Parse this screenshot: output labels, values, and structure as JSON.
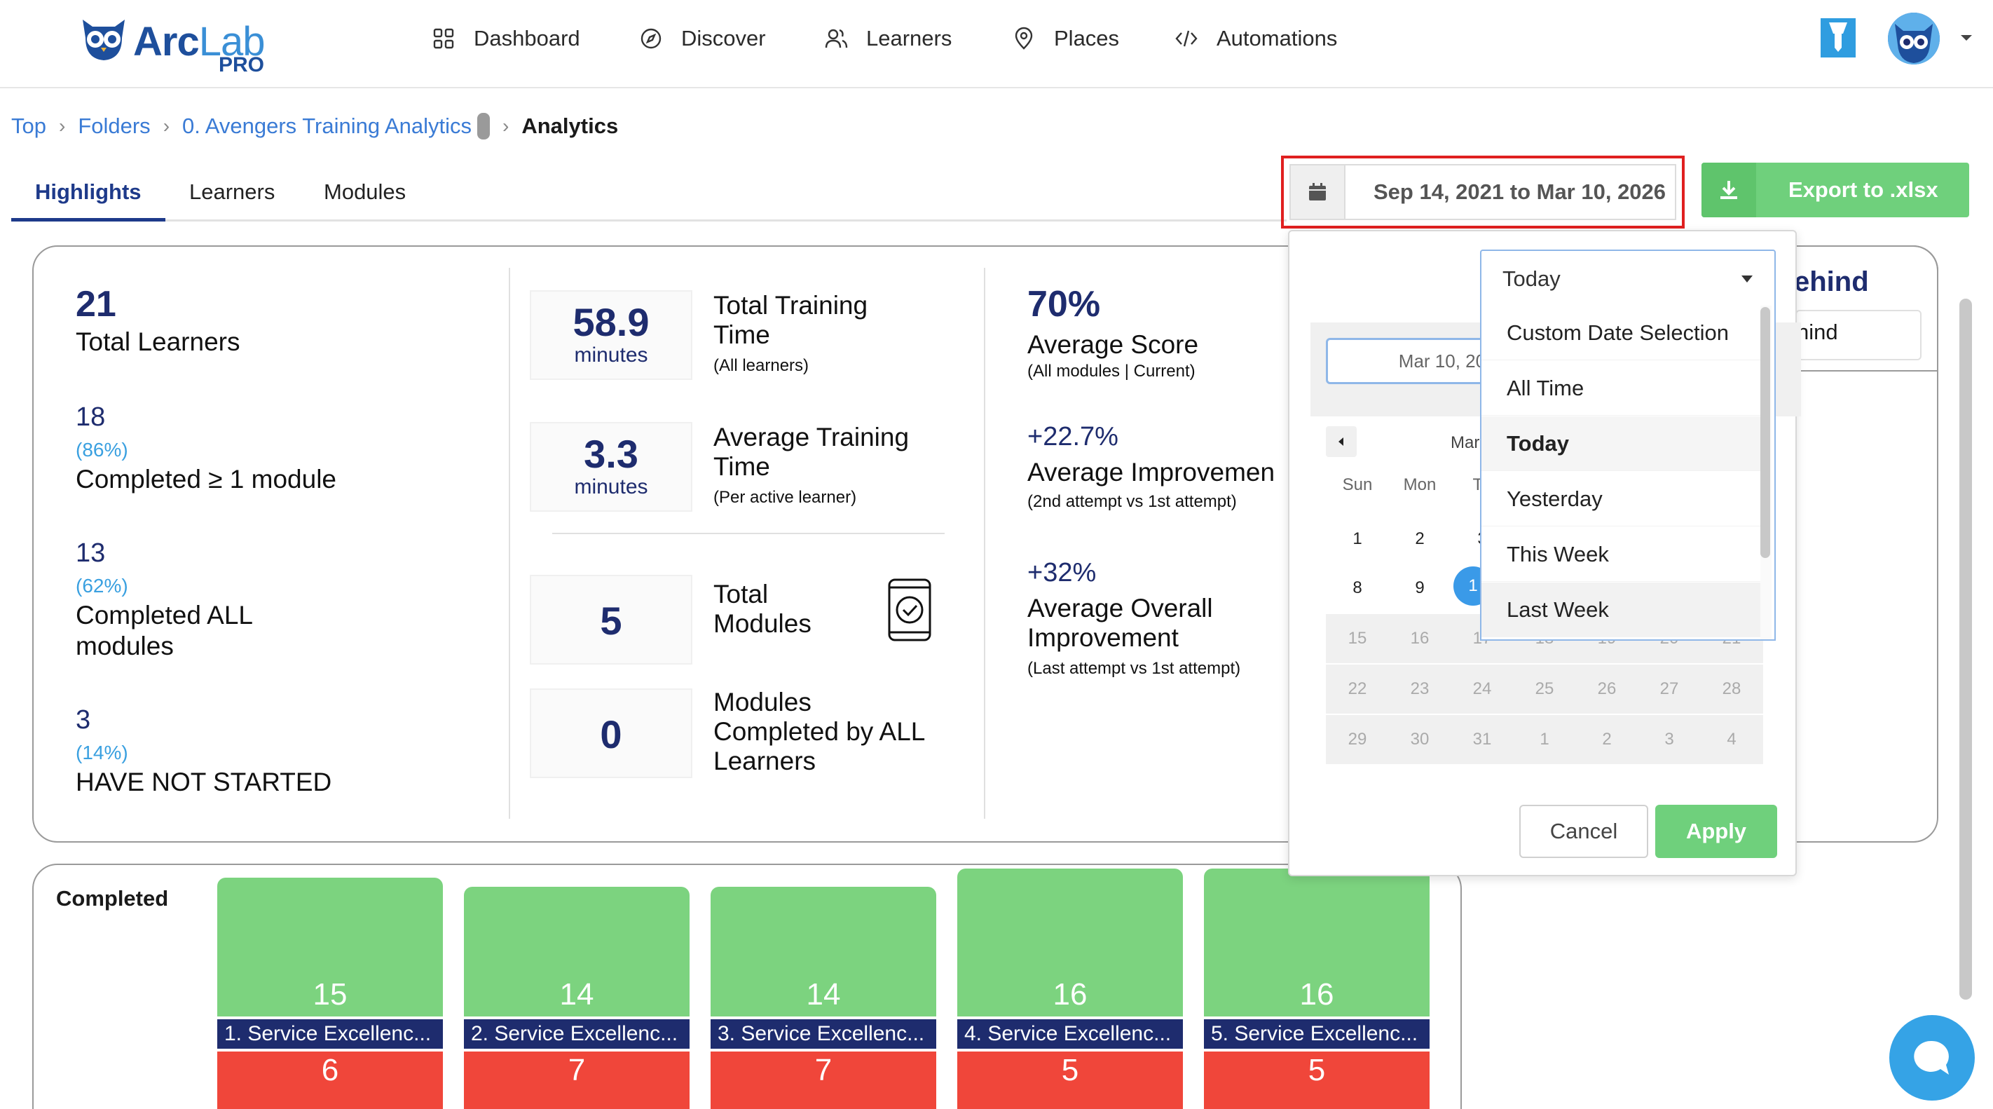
{
  "app": {
    "name_main": "Arc",
    "name_light": "Lab",
    "edition": "PRO"
  },
  "nav": {
    "items": [
      {
        "label": "Dashboard",
        "icon": "grid-icon"
      },
      {
        "label": "Discover",
        "icon": "compass-icon"
      },
      {
        "label": "Learners",
        "icon": "users-icon"
      },
      {
        "label": "Places",
        "icon": "location-pin-icon"
      },
      {
        "label": "Automations",
        "icon": "code-icon"
      }
    ]
  },
  "breadcrumb": {
    "items": [
      "Top",
      "Folders",
      "0. Avengers Training Analytics"
    ],
    "current": "Analytics"
  },
  "tabs": [
    {
      "label": "Highlights",
      "active": true
    },
    {
      "label": "Learners",
      "active": false
    },
    {
      "label": "Modules",
      "active": false
    }
  ],
  "date_range": {
    "label": "Sep 14, 2021 to Mar 10, 2026"
  },
  "export": {
    "label": "Export to .xlsx"
  },
  "learners_col": {
    "total_value": "21",
    "total_label": "Total Learners",
    "completed_one_value": "18",
    "completed_one_pct": "(86%)",
    "completed_one_label": "Completed ≥ 1 module",
    "completed_all_value": "13",
    "completed_all_pct": "(62%)",
    "completed_all_label_1": "Completed ALL",
    "completed_all_label_2": "modules",
    "not_started_value": "3",
    "not_started_pct": "(14%)",
    "not_started_label": "HAVE NOT STARTED"
  },
  "time_col": {
    "total_time_value": "58.9",
    "total_time_unit": "minutes",
    "total_time_label_1": "Total Training",
    "total_time_label_2": "Time",
    "total_time_sub": "(All learners)",
    "avg_time_value": "3.3",
    "avg_time_unit": "minutes",
    "avg_time_label_1": "Average Training",
    "avg_time_label_2": "Time",
    "avg_time_sub": "(Per active learner)",
    "modules_value": "5",
    "modules_label_1": "Total",
    "modules_label_2": "Modules",
    "modules_all_value": "0",
    "modules_all_label_1": "Modules",
    "modules_all_label_2": "Completed by ALL",
    "modules_all_label_3": "Learners"
  },
  "score_col": {
    "avg_score_value": "70%",
    "avg_score_label": "Average Score",
    "avg_score_sub": "(All modules | Current)",
    "avg_improve_value": "+22.7%",
    "avg_improve_label": "Average Improvemen",
    "avg_improve_sub": "(2nd attempt vs 1st attempt)",
    "overall_value": "+32%",
    "overall_label_1": "Average Overall",
    "overall_label_2": "Improvement",
    "overall_sub": "(Last attempt vs 1st attempt)"
  },
  "behind_card": {
    "title": "ehind",
    "sub": "hind"
  },
  "chart_data": {
    "type": "bar",
    "title": "Completed",
    "categories": [
      "1. Service Excellenc...",
      "2. Service Excellenc...",
      "3. Service Excellenc...",
      "4. Service Excellenc...",
      "5. Service Excellenc..."
    ],
    "series": [
      {
        "name": "Completed",
        "values": [
          15,
          14,
          14,
          16,
          16
        ],
        "color": "#7cd37f"
      },
      {
        "values": [
          6,
          7,
          7,
          5,
          5
        ],
        "color": "#f0463a"
      }
    ]
  },
  "picker": {
    "date_input": "Mar 10, 2026",
    "month_label": "Mar",
    "day_headers": [
      "Sun",
      "Mon",
      "Tu"
    ],
    "week1": [
      "1",
      "2",
      "3"
    ],
    "week2": [
      "8",
      "9",
      "1"
    ],
    "week3": [
      "15",
      "16",
      "17",
      "18",
      "19",
      "20",
      "21"
    ],
    "week4": [
      "22",
      "23",
      "24",
      "25",
      "26",
      "27",
      "28"
    ],
    "week5": [
      "29",
      "30",
      "31",
      "1",
      "2",
      "3",
      "4"
    ],
    "cancel_label": "Cancel",
    "apply_label": "Apply",
    "preset_value": "Today",
    "presets": [
      {
        "label": "Custom Date Selection",
        "state": ""
      },
      {
        "label": "All Time",
        "state": ""
      },
      {
        "label": "Today",
        "state": "selected"
      },
      {
        "label": "Yesterday",
        "state": ""
      },
      {
        "label": "This Week",
        "state": ""
      },
      {
        "label": "Last Week",
        "state": "hover"
      }
    ]
  },
  "colors": {
    "brand_dark": "#1e2c6e",
    "link": "#3a7bd5",
    "green": "#6fd07c",
    "red": "#f0463a",
    "highlight_border": "#e02020"
  }
}
